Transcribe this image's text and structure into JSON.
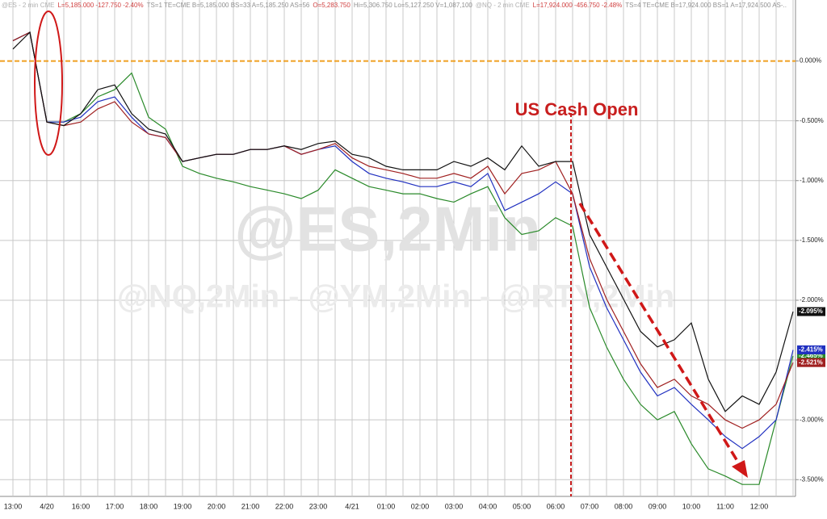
{
  "chart_data": {
    "type": "line",
    "header": [
      {
        "text": "@ES - 2 min CME",
        "color": "#b0b0b0"
      },
      {
        "text": "L=5,185.000 -127.750 -2.40%",
        "color": "#d04040"
      },
      {
        "text": "TS=1 TE=CME B=5,185.000 BS=33 A=5,185.250 AS=56",
        "color": "#909090"
      },
      {
        "text": "O=5,283.750",
        "color": "#d04040"
      },
      {
        "text": "Hi=5,306.750 Lo=5,127.250 V=1,087,100",
        "color": "#909090"
      },
      {
        "text": "@NQ - 2 min CME",
        "color": "#b0b0b0"
      },
      {
        "text": "L=17,924.000 -456.750 -2.48%",
        "color": "#d04040"
      },
      {
        "text": "TS=4 TE=CME B=17,924.000 BS=1 A=17,924.500 AS-..",
        "color": "#909090"
      }
    ],
    "watermark": "@ES,2Min",
    "watermark_sub": "@NQ,2Min - @YM,2Min - @RTY,2Min",
    "annotation": "US Cash Open",
    "categories": [
      "13:00",
      null,
      "4/20",
      null,
      "16:00",
      null,
      "17:00",
      null,
      "18:00",
      null,
      "19:00",
      null,
      "20:00",
      null,
      "21:00",
      null,
      "22:00",
      null,
      "23:00",
      null,
      "4/21",
      null,
      "01:00",
      null,
      "02:00",
      null,
      "03:00",
      null,
      "04:00",
      null,
      "05:00",
      null,
      "06:00",
      null,
      "07:00",
      null,
      "08:00",
      null,
      "09:00",
      null,
      "10:00",
      null,
      "11:00",
      null,
      "12:00",
      null,
      null
    ],
    "ylim": [
      -3.64,
      0.51
    ],
    "yticks": [
      {
        "value": 0,
        "label": "0.000%"
      },
      {
        "value": -0.5,
        "label": "-0.500%"
      },
      {
        "value": -1,
        "label": "-1.000%"
      },
      {
        "value": -1.5,
        "label": "-1.500%"
      },
      {
        "value": -2,
        "label": "-2.000%"
      },
      {
        "value": -2.5,
        "label": "-2.500%"
      },
      {
        "value": -3,
        "label": "-3.000%"
      },
      {
        "value": -3.5,
        "label": "-3.500%"
      }
    ],
    "grid": true,
    "series": [
      {
        "color": "#2a8a2a",
        "end_label": "-2.465%",
        "values": [
          0.17,
          0.24,
          -0.51,
          -0.51,
          -0.44,
          -0.3,
          -0.24,
          -0.1,
          -0.47,
          -0.57,
          -0.88,
          -0.94,
          -0.98,
          -1.01,
          -1.05,
          -1.08,
          -1.11,
          -1.15,
          -1.08,
          -0.91,
          -0.98,
          -1.05,
          -1.08,
          -1.11,
          -1.11,
          -1.15,
          -1.18,
          -1.11,
          -1.05,
          -1.31,
          -1.45,
          -1.42,
          -1.31,
          -1.38,
          -2.06,
          -2.39,
          -2.66,
          -2.87,
          -3.0,
          -2.93,
          -3.2,
          -3.41,
          -3.47,
          -3.54,
          -3.54,
          -3.0,
          -2.465
        ]
      },
      {
        "color": "#2030c0",
        "end_label": "-2.415%",
        "values": [
          0.17,
          0.24,
          -0.51,
          -0.51,
          -0.47,
          -0.34,
          -0.3,
          -0.47,
          -0.61,
          -0.64,
          -0.84,
          -0.81,
          -0.78,
          -0.78,
          -0.74,
          -0.74,
          -0.71,
          -0.78,
          -0.74,
          -0.71,
          -0.84,
          -0.94,
          -0.98,
          -1.01,
          -1.05,
          -1.05,
          -1.01,
          -1.05,
          -0.94,
          -1.25,
          -1.18,
          -1.11,
          -1.01,
          -1.11,
          -1.72,
          -2.06,
          -2.33,
          -2.6,
          -2.8,
          -2.73,
          -2.87,
          -3.0,
          -3.14,
          -3.24,
          -3.14,
          -3.0,
          -2.415
        ]
      },
      {
        "color": "#a02020",
        "end_label": "-2.521%",
        "values": [
          0.17,
          0.24,
          -0.51,
          -0.54,
          -0.51,
          -0.4,
          -0.34,
          -0.51,
          -0.61,
          -0.64,
          -0.84,
          -0.81,
          -0.78,
          -0.78,
          -0.74,
          -0.74,
          -0.71,
          -0.78,
          -0.74,
          -0.69,
          -0.81,
          -0.88,
          -0.91,
          -0.94,
          -0.98,
          -0.98,
          -0.94,
          -0.98,
          -0.88,
          -1.11,
          -0.94,
          -0.91,
          -0.84,
          -1.11,
          -1.65,
          -1.99,
          -2.26,
          -2.53,
          -2.73,
          -2.66,
          -2.8,
          -2.87,
          -3.0,
          -3.07,
          -3.0,
          -2.87,
          -2.521
        ]
      },
      {
        "color": "#111111",
        "end_label": "-2.095%",
        "values": [
          0.1,
          0.24,
          -0.51,
          -0.54,
          -0.44,
          -0.24,
          -0.2,
          -0.44,
          -0.57,
          -0.61,
          -0.84,
          -0.81,
          -0.78,
          -0.78,
          -0.74,
          -0.74,
          -0.71,
          -0.74,
          -0.69,
          -0.67,
          -0.78,
          -0.81,
          -0.88,
          -0.91,
          -0.91,
          -0.91,
          -0.84,
          -0.88,
          -0.81,
          -0.91,
          -0.71,
          -0.88,
          -0.84,
          -0.84,
          -1.45,
          -1.72,
          -1.99,
          -2.26,
          -2.39,
          -2.33,
          -2.19,
          -2.66,
          -2.93,
          -2.8,
          -2.87,
          -2.6,
          -2.095
        ]
      }
    ]
  }
}
